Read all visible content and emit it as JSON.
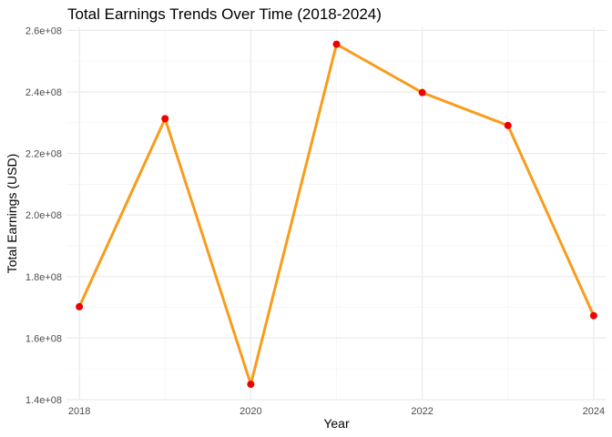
{
  "chart_data": {
    "type": "line",
    "title": "Total Earnings Trends Over Time (2018-2024)",
    "xlabel": "Year",
    "ylabel": "Total Earnings (USD)",
    "x": [
      2018,
      2019,
      2020,
      2021,
      2022,
      2023,
      2024
    ],
    "series": [
      {
        "values": [
          170200000,
          231300000,
          145000000,
          255500000,
          239800000,
          229100000,
          167300000
        ]
      }
    ],
    "xlim": [
      2017.85,
      2024.15
    ],
    "ylim": [
      140000000,
      261000000
    ],
    "x_ticks": [
      2018,
      2020,
      2022,
      2024
    ],
    "x_tick_labels": [
      "2018",
      "2020",
      "2022",
      "2024"
    ],
    "y_ticks": [
      140000000,
      160000000,
      180000000,
      200000000,
      220000000,
      240000000,
      260000000
    ],
    "y_tick_labels": [
      "1.4e+08",
      "1.6e+08",
      "1.8e+08",
      "2.0e+08",
      "2.2e+08",
      "2.4e+08",
      "2.6e+08"
    ],
    "grid": true,
    "legend": "none",
    "colors": {
      "line": "#F89C1C",
      "points": "#F00000",
      "grid_major": "#EBEBEB",
      "grid_minor": "#F4F4F4"
    }
  }
}
